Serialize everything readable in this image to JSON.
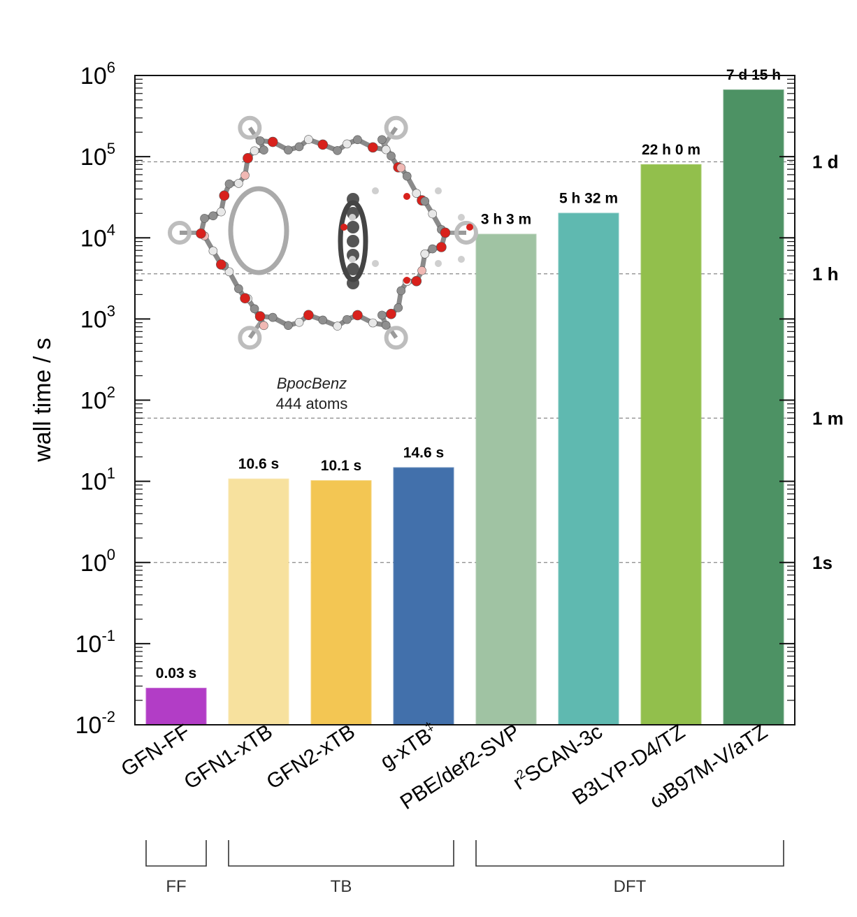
{
  "chart_data": {
    "type": "bar",
    "ylabel": "wall time / s",
    "yscale": "log",
    "ylim": [
      0.01,
      1000000
    ],
    "y_tick_exponents": [
      "6",
      "5",
      "4",
      "3",
      "2",
      "1",
      "0",
      "-1",
      "-2"
    ],
    "categories": [
      {
        "label": "GFN-FF",
        "sup": ""
      },
      {
        "label": "GFN1-xTB",
        "sup": ""
      },
      {
        "label": "GFN2-xTB",
        "sup": ""
      },
      {
        "label": "g-xTB",
        "sup": "‡"
      },
      {
        "label": "PBE/def2-SVP",
        "sup": ""
      },
      {
        "label": "SCAN-3c",
        "sup": "2",
        "prefix": "r"
      },
      {
        "label": "B3LYP-D4/TZ",
        "sup": ""
      },
      {
        "label": "ωB97M-V/aTZ",
        "sup": ""
      }
    ],
    "values": [
      0.028,
      10.6,
      10.1,
      14.6,
      10980,
      19920,
      79200,
      658800
    ],
    "value_labels": [
      "0.03 s",
      "10.6 s",
      "10.1 s",
      "14.6 s",
      "3 h 3 m",
      "5 h 32 m",
      "22 h 0 m",
      "7 d 15 h"
    ],
    "colors": [
      "#b23dc6",
      "#f7e19e",
      "#f3c653",
      "#4270ab",
      "#a0c3a3",
      "#5fb9b0",
      "#92bf4c",
      "#4d9264"
    ],
    "reference_lines": [
      {
        "value": 86400,
        "label": "1 d"
      },
      {
        "value": 3600,
        "label": "1 h"
      },
      {
        "value": 60,
        "label": "1 m"
      },
      {
        "value": 1,
        "label": "1s"
      }
    ],
    "groups": [
      {
        "label": "FF",
        "from": 0,
        "to": 0
      },
      {
        "label": "TB",
        "from": 1,
        "to": 3
      },
      {
        "label": "DFT",
        "from": 4,
        "to": 7
      }
    ],
    "inset": {
      "name": "BpocBenz",
      "atoms": "444 atoms"
    },
    "grid": false
  }
}
